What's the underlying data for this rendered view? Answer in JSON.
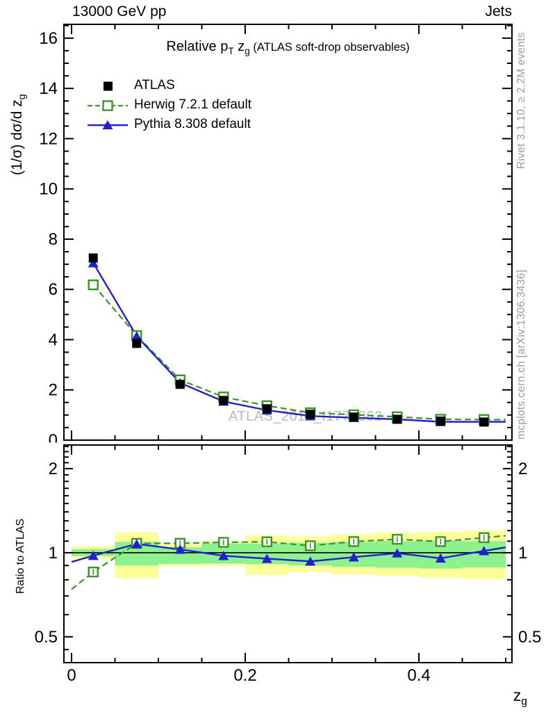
{
  "header": {
    "left_title": "13000 GeV pp",
    "right_title": "Jets"
  },
  "right_margin": {
    "top_text": "Rivet 3.1.10, ≥ 2.2M events",
    "bottom_text": "mcplots.cern.ch [arXiv:1306.3436]"
  },
  "watermark": "ATLAS_2019_I1772062",
  "chart_data": {
    "type": "line",
    "title": {
      "prefix": "Relative p",
      "sub1": "T",
      "mid": " z",
      "sub2": "g",
      "suffix": " (ATLAS soft-drop observables)"
    },
    "xlabel": {
      "prefix": "z",
      "sub": "g"
    },
    "ylabel": {
      "prefix": "(1/σ) dσ/d z",
      "sub": "g"
    },
    "ratio_label": "Ratio to ATLAS",
    "x_bin_centers": [
      0.025,
      0.075,
      0.125,
      0.175,
      0.225,
      0.275,
      0.325,
      0.375,
      0.425,
      0.475
    ],
    "x_bin_edges": [
      0,
      0.05,
      0.1,
      0.15,
      0.2,
      0.25,
      0.3,
      0.35,
      0.4,
      0.45,
      0.5
    ],
    "xlim": [
      -0.0088,
      0.5072
    ],
    "ylim": [
      0,
      16.55
    ],
    "ratio_ylim": [
      0.404,
      2.43
    ],
    "ratio_scale": "log",
    "x_ticks_major": [
      0,
      0.2,
      0.4
    ],
    "x_ticks_minor": [
      0.05,
      0.1,
      0.15,
      0.25,
      0.3,
      0.35,
      0.45,
      0.5
    ],
    "y_ticks_major": [
      0,
      2,
      4,
      6,
      8,
      10,
      12,
      14,
      16
    ],
    "y_minor_step": 0.5,
    "ratio_ticks_major": [
      0.5,
      1,
      2
    ],
    "ratio_ticks_minor": [
      0.45,
      0.6,
      0.7,
      0.8,
      0.9,
      1.1,
      1.2,
      1.3,
      1.4,
      1.5,
      1.6,
      1.7,
      1.8,
      1.9,
      2.1,
      2.2,
      2.3,
      2.4
    ],
    "series": [
      {
        "name": "ATLAS",
        "color": "#000000",
        "marker": "square",
        "fill": "solid",
        "line": "none",
        "values": [
          7.25,
          3.85,
          2.22,
          1.58,
          1.25,
          1.03,
          0.92,
          0.83,
          0.76,
          0.72
        ]
      },
      {
        "name": "Herwig 7.2.1 default",
        "color": "#3a9425",
        "marker": "square",
        "fill": "open",
        "line": "dashed",
        "values": [
          6.18,
          4.16,
          2.4,
          1.72,
          1.37,
          1.09,
          1.01,
          0.93,
          0.83,
          0.82
        ],
        "ratio": [
          0.853,
          1.08,
          1.081,
          1.089,
          1.094,
          1.059,
          1.096,
          1.117,
          1.096,
          1.132
        ]
      },
      {
        "name": "Pythia 8.308 default",
        "color": "#2020d0",
        "marker": "triangle",
        "fill": "solid",
        "line": "solid",
        "values": [
          7.05,
          4.14,
          2.28,
          1.54,
          1.19,
          0.96,
          0.89,
          0.83,
          0.73,
          0.73
        ],
        "ratio": [
          0.976,
          1.075,
          1.027,
          0.975,
          0.952,
          0.931,
          0.964,
          0.996,
          0.955,
          1.015
        ]
      }
    ],
    "uncertainty_bands": {
      "outer": {
        "color": "#ffff99",
        "up": [
          1.055,
          1.18,
          1.075,
          1.1,
          1.154,
          1.143,
          1.165,
          1.18,
          1.19,
          1.2
        ],
        "down": [
          0.95,
          0.81,
          0.897,
          0.897,
          0.834,
          0.853,
          0.837,
          0.826,
          0.815,
          0.805
        ]
      },
      "inner": {
        "color": "#8df28d",
        "up": [
          1.03,
          1.094,
          1.045,
          1.079,
          1.079,
          1.085,
          1.094,
          1.1,
          1.105,
          1.1
        ],
        "down": [
          0.972,
          0.9,
          0.912,
          0.914,
          0.909,
          0.9,
          0.89,
          0.883,
          0.878,
          0.885
        ]
      }
    }
  }
}
